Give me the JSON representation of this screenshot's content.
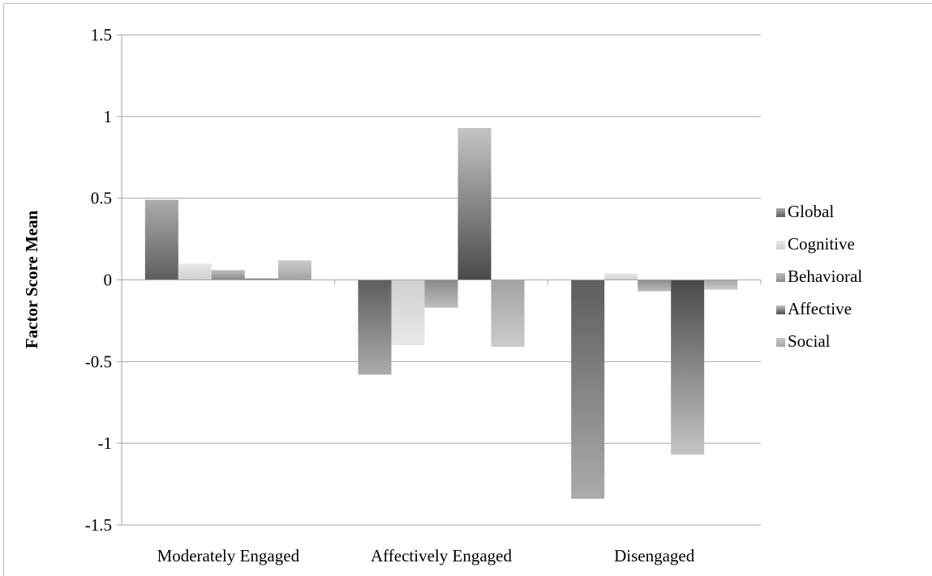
{
  "chart_data": {
    "type": "bar",
    "title": "",
    "xlabel": "",
    "ylabel": "Factor Score Mean",
    "ylim": [
      -1.5,
      1.5
    ],
    "yticks": [
      1.5,
      1,
      0.5,
      0,
      -0.5,
      -1,
      -1.5
    ],
    "ytick_labels": [
      "1.5",
      "1",
      "0.5",
      "0",
      "-0.5",
      "-1",
      "-1.5"
    ],
    "grid": true,
    "legend_position": "right",
    "categories": [
      "Moderately Engaged",
      "Affectively Engaged",
      "Disengaged"
    ],
    "series": [
      {
        "name": "Global",
        "values": [
          0.49,
          -0.58,
          -1.34
        ],
        "color_dark": "#5e5e5e",
        "color_light": "#ababab"
      },
      {
        "name": "Cognitive",
        "values": [
          0.1,
          -0.4,
          0.04
        ],
        "color_dark": "#d0d0d0",
        "color_light": "#e8e8e8"
      },
      {
        "name": "Behavioral",
        "values": [
          0.06,
          -0.17,
          -0.07
        ],
        "color_dark": "#8a8a8a",
        "color_light": "#bdbdbd"
      },
      {
        "name": "Affective",
        "values": [
          0.01,
          0.93,
          -1.07
        ],
        "color_dark": "#4a4a4a",
        "color_light": "#c4c4c4"
      },
      {
        "name": "Social",
        "values": [
          0.12,
          -0.41,
          -0.06
        ],
        "color_dark": "#a3a3a3",
        "color_light": "#cbcbcb"
      }
    ]
  }
}
